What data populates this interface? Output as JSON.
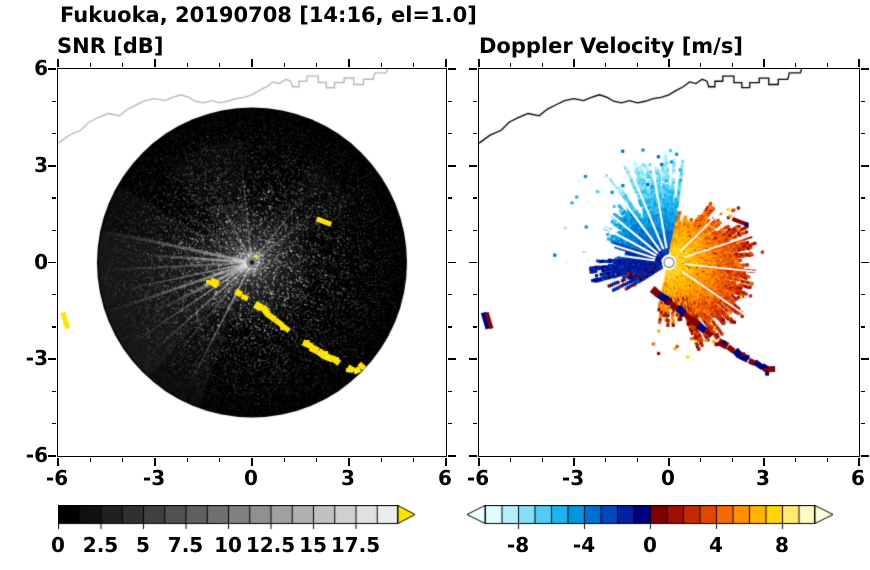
{
  "title": "Fukuoka, 20190708 [14:16, el=1.0]",
  "panels": [
    {
      "id": "snr",
      "title": "SNR [dB]",
      "xticks": [
        "-6",
        "-3",
        "0",
        "3",
        "6"
      ],
      "yticks": [
        "6",
        "3",
        "0",
        "-3",
        "-6"
      ],
      "axis_range": [
        -6,
        6
      ]
    },
    {
      "id": "velocity",
      "title": "Doppler Velocity [m/s]",
      "xticks": [
        "-6",
        "-3",
        "0",
        "3",
        "6"
      ],
      "axis_range": [
        -6,
        6
      ]
    }
  ],
  "colorbars": [
    {
      "id": "snr",
      "unit": "dB",
      "range": [
        0,
        20
      ],
      "tick_values": [
        0,
        2.5,
        5,
        7.5,
        10,
        12.5,
        15,
        17.5
      ],
      "tick_labels": [
        "0",
        "2.5",
        "5",
        "7.5",
        "10",
        "12.5",
        "15",
        "17.5"
      ],
      "colors": [
        "#000000",
        "#101010",
        "#202020",
        "#303030",
        "#404040",
        "#505050",
        "#606060",
        "#707070",
        "#808080",
        "#909090",
        "#a0a0a0",
        "#b0b0b0",
        "#c0c0c0",
        "#d0d0d0",
        "#e0e0e0",
        "#ececec"
      ],
      "over_arrow_color": "#ffe400"
    },
    {
      "id": "velocity",
      "unit": "m/s",
      "range": [
        -10,
        10
      ],
      "tick_values": [
        -8,
        -4,
        0,
        4,
        8
      ],
      "tick_labels": [
        "-8",
        "-4",
        "0",
        "4",
        "8"
      ],
      "colors": [
        "#e0fdff",
        "#b4f0fb",
        "#84e0f8",
        "#50ccf4",
        "#1cb4ee",
        "#0096e0",
        "#0070d0",
        "#0048c0",
        "#0020a0",
        "#000080",
        "#800000",
        "#a01000",
        "#c42800",
        "#e04800",
        "#f46c00",
        "#ff9000",
        "#ffb400",
        "#ffd600",
        "#ffec6c",
        "#fff9c4"
      ],
      "under_arrow_color": "#f0ffff",
      "over_arrow_color": "#ffffdc"
    }
  ],
  "map_coastline": [
    [
      -6.0,
      3.7
    ],
    [
      -5.65,
      3.95
    ],
    [
      -5.3,
      4.1
    ],
    [
      -5.05,
      4.35
    ],
    [
      -4.75,
      4.5
    ],
    [
      -4.45,
      4.62
    ],
    [
      -4.1,
      4.55
    ],
    [
      -3.85,
      4.75
    ],
    [
      -3.55,
      4.9
    ],
    [
      -3.3,
      5.02
    ],
    [
      -3.0,
      5.08
    ],
    [
      -2.7,
      5.02
    ],
    [
      -2.45,
      5.12
    ],
    [
      -2.2,
      5.2
    ],
    [
      -1.95,
      5.12
    ],
    [
      -1.75,
      5.0
    ],
    [
      -1.5,
      4.95
    ],
    [
      -1.25,
      5.02
    ],
    [
      -1.0,
      4.95
    ],
    [
      -0.75,
      5.0
    ],
    [
      -0.5,
      5.08
    ],
    [
      -0.25,
      5.12
    ],
    [
      0.0,
      5.2
    ],
    [
      0.2,
      5.32
    ],
    [
      0.45,
      5.45
    ],
    [
      0.65,
      5.6
    ],
    [
      0.85,
      5.55
    ],
    [
      1.05,
      5.68
    ],
    [
      1.2,
      5.62
    ],
    [
      1.25,
      5.45
    ],
    [
      1.45,
      5.45
    ],
    [
      1.45,
      5.62
    ],
    [
      1.7,
      5.62
    ],
    [
      1.7,
      5.78
    ],
    [
      2.05,
      5.78
    ],
    [
      2.05,
      5.58
    ],
    [
      2.3,
      5.58
    ],
    [
      2.3,
      5.42
    ],
    [
      2.55,
      5.42
    ],
    [
      2.55,
      5.58
    ],
    [
      2.85,
      5.58
    ],
    [
      2.85,
      5.72
    ],
    [
      3.15,
      5.72
    ],
    [
      3.15,
      5.52
    ],
    [
      3.45,
      5.52
    ],
    [
      3.45,
      5.68
    ],
    [
      3.75,
      5.68
    ],
    [
      3.8,
      5.88
    ],
    [
      4.15,
      5.88
    ],
    [
      4.2,
      6.05
    ]
  ],
  "chart_data": [
    {
      "type": "heatmap",
      "title": "SNR [dB]",
      "geometry": "radar PPI scan",
      "x_range": [
        -6,
        6
      ],
      "y_range": [
        -6,
        6
      ],
      "x_ticks": [
        -6,
        -3,
        0,
        3,
        6
      ],
      "y_ticks": [
        -6,
        -3,
        0,
        3,
        6
      ],
      "colorbar_range": [
        0,
        20
      ],
      "colorbar_ticks": [
        0,
        2.5,
        5,
        7.5,
        10,
        12.5,
        15,
        17.5
      ],
      "radar_location": [
        0,
        0
      ],
      "scan_disk_radius": 4.8,
      "interference_streak_angles_deg": [
        38,
        52,
        96,
        118,
        132,
        143,
        152,
        168,
        176,
        183,
        192,
        199,
        207,
        214,
        222,
        231,
        243,
        256
      ],
      "clutter_arcs": [
        [
          [
            -1.3,
            -0.55
          ],
          [
            -1.05,
            -0.7
          ]
        ],
        [
          [
            -0.5,
            -0.85
          ],
          [
            -0.32,
            -1.0
          ],
          [
            -0.12,
            -1.12
          ],
          [
            0.05,
            -1.28
          ],
          [
            0.3,
            -1.42
          ],
          [
            0.5,
            -1.6
          ],
          [
            0.72,
            -1.78
          ],
          [
            0.95,
            -1.95
          ],
          [
            1.15,
            -2.12
          ],
          [
            1.35,
            -2.28
          ]
        ],
        [
          [
            1.6,
            -2.45
          ],
          [
            1.85,
            -2.6
          ],
          [
            2.05,
            -2.75
          ],
          [
            2.25,
            -2.9
          ],
          [
            2.5,
            -3.0
          ],
          [
            2.7,
            -3.12
          ],
          [
            2.95,
            -3.25
          ],
          [
            3.15,
            -3.35
          ],
          [
            3.35,
            -3.3
          ],
          [
            3.45,
            -3.15
          ]
        ]
      ],
      "clutter_spots": [
        [
          [
            2.0,
            1.35
          ],
          [
            2.45,
            1.18
          ]
        ],
        [
          [
            -5.85,
            -1.55
          ],
          [
            -5.7,
            -2.05
          ]
        ]
      ],
      "description": "Black circular scan disk (radius ~4.8) of weak speckled SNR noise, gray glow around the radar origin, bright radial interference streaks mostly toward W-SW, saturated yellow (>20 dB) ground/sea clutter arcs curving SE of the radar, yellow dash NE of the radar and a yellow blob at the far-left edge; pale coastline drawn along the top."
    },
    {
      "type": "heatmap",
      "title": "Doppler Velocity [m/s]",
      "geometry": "radar PPI scan",
      "x_range": [
        -6,
        6
      ],
      "y_range": [
        -6,
        6
      ],
      "x_ticks": [
        -6,
        -3,
        0,
        3,
        6
      ],
      "y_ticks": [
        -6,
        -3,
        0,
        3,
        6
      ],
      "colorbar_range": [
        -10,
        10
      ],
      "colorbar_ticks": [
        -8,
        -4,
        0,
        4,
        8
      ],
      "negative_fan": {
        "azimuth_deg_ccw_from_east": [
          82,
          178
        ],
        "max_radius": 3.45,
        "velocity": "about -1 m/s near the radar grading to -8/-9 m/s (cyan) at the fan edge"
      },
      "west_navy_patch": {
        "azimuth_deg_ccw_from_east": [
          178,
          212
        ],
        "max_radius": 2.6,
        "velocity": "-1 to -3 m/s (navy) with sparse +1/+2 m/s specks"
      },
      "positive_fan": {
        "azimuth_deg_ccw_from_east": [
          -102,
          80
        ],
        "max_radius": 2.9,
        "velocity": "about +8 m/s (orange-yellow) near the radar grading to +1/+2 m/s (dark red) at the fan edge"
      },
      "clutter_arcs": "same arcs and spots as the SNR panel, rendered as aliased dark-red/navy pixels",
      "description": "Doppler velocity fans on white background: cyan/blue negative velocities to the N-W, orange/yellow positive velocities to the E-S, dark navy bar west of the radar, dark-red/navy clutter arcs below centre and to the SE, small white radar dot at the origin, black coastline along the top."
    }
  ]
}
